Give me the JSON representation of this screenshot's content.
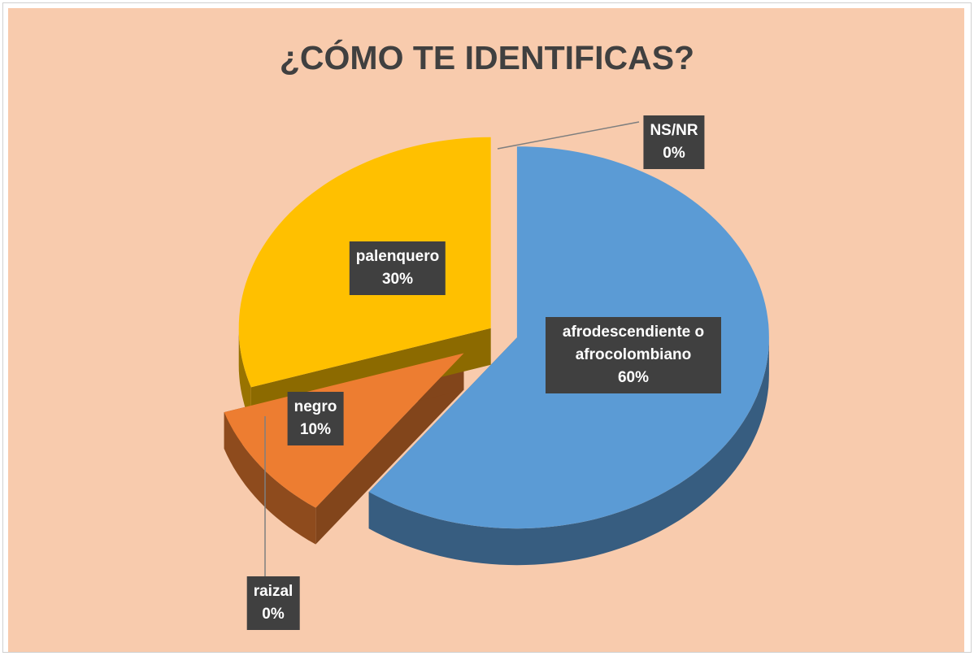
{
  "chart_data": {
    "type": "pie",
    "title": "¿CÓMO TE IDENTIFICAS?",
    "categories": [
      "afrodescendiente o afrocolombiano",
      "negro",
      "raizal",
      "palenquero",
      "NS/NR"
    ],
    "values": [
      60,
      10,
      0,
      30,
      0
    ],
    "value_labels": [
      "60%",
      "10%",
      "0%",
      "30%",
      "0%"
    ],
    "colors": [
      "#5b9bd5",
      "#ed7d31",
      "#a5a5a5",
      "#ffc000",
      "#4472c4"
    ]
  }
}
